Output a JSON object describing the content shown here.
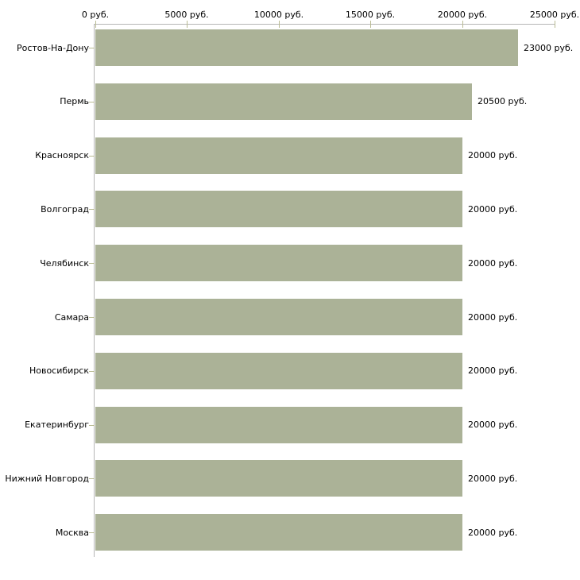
{
  "chart_data": {
    "type": "bar",
    "orientation": "horizontal",
    "title": "",
    "xlabel": "",
    "ylabel": "",
    "unit": "руб.",
    "xlim": [
      0,
      25000
    ],
    "grid": "off",
    "legend": "none",
    "x_tick_values": [
      0,
      5000,
      10000,
      15000,
      20000,
      25000
    ],
    "x_tick_labels": [
      "0 руб.",
      "5000 руб.",
      "10000 руб.",
      "15000 руб.",
      "20000 руб.",
      "25000 руб."
    ],
    "categories": [
      "Ростов-На-Дону",
      "Пермь",
      "Красноярск",
      "Волгоград",
      "Челябинск",
      "Самара",
      "Новосибирск",
      "Екатеринбург",
      "Нижний Новгород",
      "Москва"
    ],
    "values": [
      23000,
      20500,
      20000,
      20000,
      20000,
      20000,
      20000,
      20000,
      20000,
      20000
    ],
    "value_labels": [
      "23000 руб.",
      "20500 руб.",
      "20000 руб.",
      "20000 руб.",
      "20000 руб.",
      "20000 руб.",
      "20000 руб.",
      "20000 руб.",
      "20000 руб.",
      "20000 руб."
    ],
    "colors": {
      "bar": "#abb297",
      "axis_line": "#b6b6b6",
      "tick": "#b9bb93",
      "text": "#000000",
      "background": "#ffffff"
    }
  }
}
